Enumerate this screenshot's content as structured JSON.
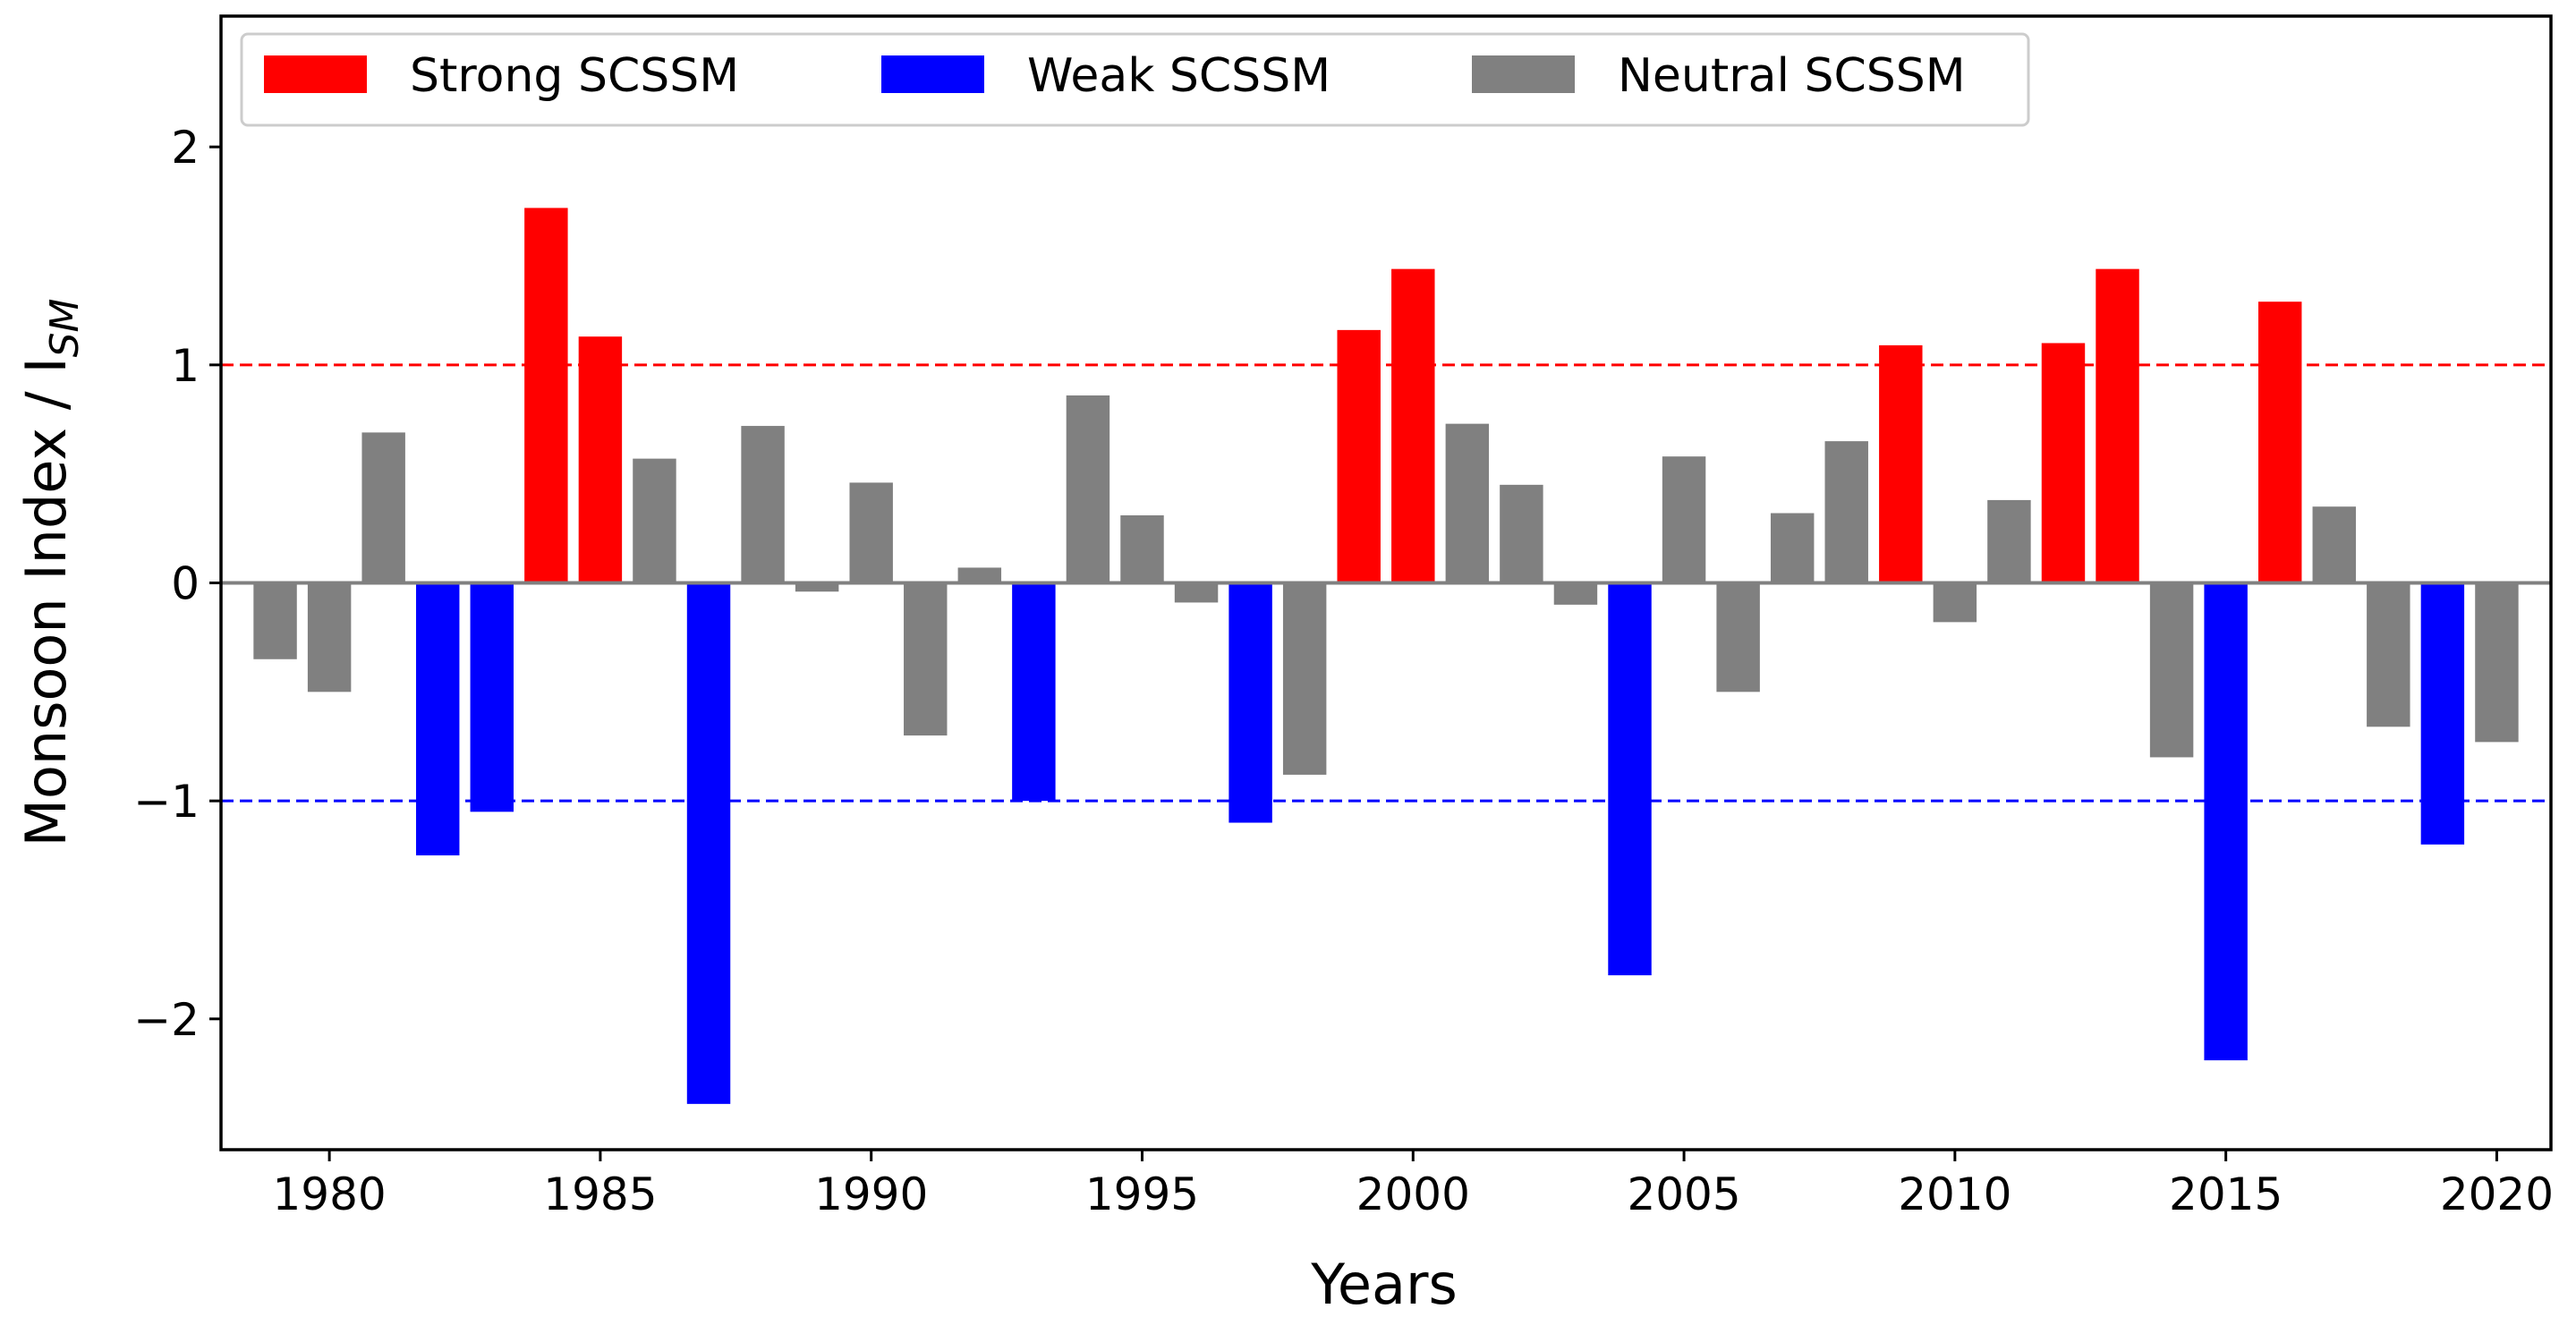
{
  "chart_data": {
    "type": "bar",
    "title": "",
    "xlabel": "Years",
    "ylabel": "Monsoon Index / I",
    "ylabel_subscript": "SM",
    "xlim": [
      1978,
      2021
    ],
    "ylim": [
      -2.6,
      2.6
    ],
    "xticks": [
      1980,
      1985,
      1990,
      1995,
      2000,
      2005,
      2010,
      2015,
      2020
    ],
    "yticks": [
      -2,
      -1,
      0,
      1,
      2
    ],
    "ytick_labels": [
      "−2",
      "−1",
      "0",
      "1",
      "2"
    ],
    "thresholds": [
      {
        "value": 1,
        "color": "#ff0000",
        "style": "dashed"
      },
      {
        "value": -1,
        "color": "#0000ff",
        "style": "dashed"
      }
    ],
    "colors": {
      "Strong": "#ff0000",
      "Weak": "#0000ff",
      "Neutral": "#808080"
    },
    "legend": {
      "position": "top-left",
      "entries": [
        {
          "key": "Strong",
          "label": "Strong SCSSM"
        },
        {
          "key": "Weak",
          "label": "Weak SCSSM"
        },
        {
          "key": "Neutral",
          "label": "Neutral SCSSM"
        }
      ]
    },
    "years": [
      1979,
      1980,
      1981,
      1982,
      1983,
      1984,
      1985,
      1986,
      1987,
      1988,
      1989,
      1990,
      1991,
      1992,
      1993,
      1994,
      1995,
      1996,
      1997,
      1998,
      1999,
      2000,
      2001,
      2002,
      2003,
      2004,
      2005,
      2006,
      2007,
      2008,
      2009,
      2010,
      2011,
      2012,
      2013,
      2014,
      2015,
      2016,
      2017,
      2018,
      2019,
      2020
    ],
    "values": [
      -0.35,
      -0.5,
      0.69,
      -1.25,
      -1.05,
      1.72,
      1.13,
      0.57,
      -2.39,
      0.72,
      -0.04,
      0.46,
      -0.7,
      0.07,
      -1.0,
      0.86,
      0.31,
      -0.09,
      -1.1,
      -0.88,
      1.16,
      1.44,
      0.73,
      0.45,
      -0.1,
      -1.8,
      0.58,
      -0.5,
      0.32,
      0.65,
      1.09,
      -0.18,
      0.38,
      1.1,
      1.44,
      -0.8,
      -2.19,
      1.29,
      0.35,
      -0.66,
      -1.2,
      -0.73
    ],
    "categories": [
      "Neutral",
      "Neutral",
      "Neutral",
      "Weak",
      "Weak",
      "Strong",
      "Strong",
      "Neutral",
      "Weak",
      "Neutral",
      "Neutral",
      "Neutral",
      "Neutral",
      "Neutral",
      "Weak",
      "Neutral",
      "Neutral",
      "Neutral",
      "Weak",
      "Neutral",
      "Strong",
      "Strong",
      "Neutral",
      "Neutral",
      "Neutral",
      "Weak",
      "Neutral",
      "Neutral",
      "Neutral",
      "Neutral",
      "Strong",
      "Neutral",
      "Neutral",
      "Strong",
      "Strong",
      "Neutral",
      "Weak",
      "Strong",
      "Neutral",
      "Neutral",
      "Weak",
      "Neutral"
    ]
  }
}
